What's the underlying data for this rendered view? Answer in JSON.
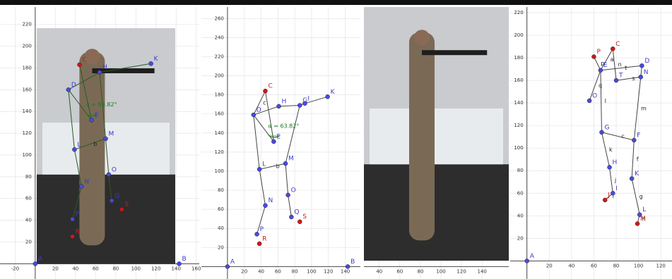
{
  "chart_data": [
    {
      "type": "scatter",
      "photo": true,
      "xlim": [
        -35,
        163
      ],
      "ylim": [
        -14,
        236
      ],
      "xticks": [
        -20,
        20,
        40,
        60,
        80,
        100,
        120,
        140,
        160
      ],
      "yticks": [
        20,
        40,
        60,
        80,
        100,
        120,
        140,
        160,
        180,
        200,
        220
      ],
      "points": [
        {
          "label": "A",
          "x": 0,
          "y": 0,
          "color": "#4a4ae0"
        },
        {
          "label": "B",
          "x": 143,
          "y": 0,
          "color": "#4a4ae0"
        },
        {
          "label": "C",
          "x": 44,
          "y": 183,
          "color": "#d01818"
        },
        {
          "label": "D",
          "x": 33,
          "y": 160,
          "color": "#4a4ae0"
        },
        {
          "label": "E",
          "x": 56,
          "y": 132,
          "color": "#4a4ae0"
        },
        {
          "label": "H",
          "x": 64,
          "y": 176,
          "color": "#4a4ae0"
        },
        {
          "label": "K",
          "x": 115,
          "y": 184,
          "color": "#4a4ae0"
        },
        {
          "label": "L",
          "x": 39,
          "y": 105,
          "color": "#4a4ae0"
        },
        {
          "label": "M",
          "x": 70,
          "y": 115,
          "color": "#4a4ae0"
        },
        {
          "label": "N",
          "x": 46,
          "y": 71,
          "color": "#4a4ae0"
        },
        {
          "label": "O",
          "x": 73,
          "y": 82,
          "color": "#4a4ae0"
        },
        {
          "label": "P",
          "x": 37,
          "y": 41,
          "color": "#4a4ae0"
        },
        {
          "label": "Q",
          "x": 76,
          "y": 58,
          "color": "#4a4ae0"
        },
        {
          "label": "R",
          "x": 37,
          "y": 25,
          "color": "#d01818"
        },
        {
          "label": "S",
          "x": 86,
          "y": 50,
          "color": "#d01818"
        }
      ],
      "segment_labels": [
        "b"
      ],
      "annotation": "α = 63.82°"
    },
    {
      "type": "scatter",
      "photo": false,
      "xlim": [
        -31,
        158
      ],
      "ylim": [
        -13,
        272
      ],
      "xticks": [
        20,
        40,
        60,
        80,
        100,
        120,
        140
      ],
      "yticks": [
        20,
        40,
        60,
        80,
        100,
        120,
        140,
        160,
        180,
        200,
        220,
        240,
        260
      ],
      "points": [
        {
          "label": "A",
          "x": 0,
          "y": 0,
          "color": "#4a4ae0"
        },
        {
          "label": "B",
          "x": 143,
          "y": 0,
          "color": "#4a4ae0"
        },
        {
          "label": "C",
          "x": 45,
          "y": 184,
          "color": "#d01818"
        },
        {
          "label": "D",
          "x": 31,
          "y": 159,
          "color": "#4a4ae0"
        },
        {
          "label": "E",
          "x": 55,
          "y": 131,
          "color": "#4a4ae0"
        },
        {
          "label": "H",
          "x": 61,
          "y": 168,
          "color": "#4a4ae0"
        },
        {
          "label": "G",
          "x": 86,
          "y": 169,
          "color": "#4a4ae0"
        },
        {
          "label": "I",
          "x": 92,
          "y": 171,
          "color": "#4a4ae0"
        },
        {
          "label": "K",
          "x": 119,
          "y": 178,
          "color": "#4a4ae0"
        },
        {
          "label": "L",
          "x": 38,
          "y": 102,
          "color": "#4a4ae0"
        },
        {
          "label": "M",
          "x": 69,
          "y": 108,
          "color": "#4a4ae0"
        },
        {
          "label": "N",
          "x": 45,
          "y": 64,
          "color": "#4a4ae0"
        },
        {
          "label": "O",
          "x": 72,
          "y": 75,
          "color": "#4a4ae0"
        },
        {
          "label": "P",
          "x": 35,
          "y": 34,
          "color": "#4a4ae0"
        },
        {
          "label": "Q",
          "x": 76,
          "y": 52,
          "color": "#4a4ae0"
        },
        {
          "label": "R",
          "x": 38,
          "y": 24,
          "color": "#d01818"
        },
        {
          "label": "S",
          "x": 86,
          "y": 47,
          "color": "#d01818"
        }
      ],
      "segment_labels": [
        "c",
        "b"
      ],
      "annotation": "α = 63.82°"
    },
    {
      "type": "scatter",
      "photo": true,
      "xlim": [
        25,
        166
      ],
      "ylim": [
        -12,
        250
      ],
      "xticks": [
        40,
        60,
        80,
        100,
        120,
        140
      ],
      "yticks": [],
      "points": [],
      "segment_labels": []
    },
    {
      "type": "scatter",
      "photo": false,
      "xlim": [
        -15,
        130
      ],
      "ylim": [
        -16,
        225
      ],
      "xticks": [
        20,
        40,
        60,
        80,
        100,
        120
      ],
      "yticks": [
        20,
        40,
        60,
        80,
        100,
        120,
        140,
        160,
        180,
        200,
        220
      ],
      "points": [
        {
          "label": "A",
          "x": 0,
          "y": 0,
          "color": "#4a4ae0"
        },
        {
          "label": "C",
          "x": 77,
          "y": 188,
          "color": "#d01818"
        },
        {
          "label": "P",
          "x": 60,
          "y": 181,
          "color": "#d01818"
        },
        {
          "label": "D",
          "x": 103,
          "y": 173,
          "color": "#4a4ae0"
        },
        {
          "label": "E",
          "x": 66,
          "y": 169,
          "color": "#4a4ae0"
        },
        {
          "label": "O",
          "x": 56,
          "y": 142,
          "color": "#4a4ae0"
        },
        {
          "label": "G",
          "x": 67,
          "y": 114,
          "color": "#4a4ae0"
        },
        {
          "label": "F",
          "x": 96,
          "y": 107,
          "color": "#4a4ae0"
        },
        {
          "label": "H",
          "x": 74,
          "y": 83,
          "color": "#4a4ae0"
        },
        {
          "label": "K",
          "x": 94,
          "y": 73,
          "color": "#4a4ae0"
        },
        {
          "label": "I",
          "x": 77,
          "y": 60,
          "color": "#4a4ae0"
        },
        {
          "label": "J",
          "x": 70,
          "y": 54,
          "color": "#d01818"
        },
        {
          "label": "L",
          "x": 101,
          "y": 41,
          "color": "#4a4ae0"
        },
        {
          "label": "M",
          "x": 99,
          "y": 33,
          "color": "#d01818"
        },
        {
          "label": "N",
          "x": 102,
          "y": 163,
          "color": "#4a4ae0"
        },
        {
          "label": "T",
          "x": 80,
          "y": 160,
          "color": "#4a4ae0"
        }
      ],
      "segment_labels": [
        "a",
        "n",
        "t",
        "s",
        "p",
        "q",
        "l",
        "m",
        "c",
        "k",
        "f",
        "j",
        "g",
        "h",
        "i"
      ]
    }
  ]
}
